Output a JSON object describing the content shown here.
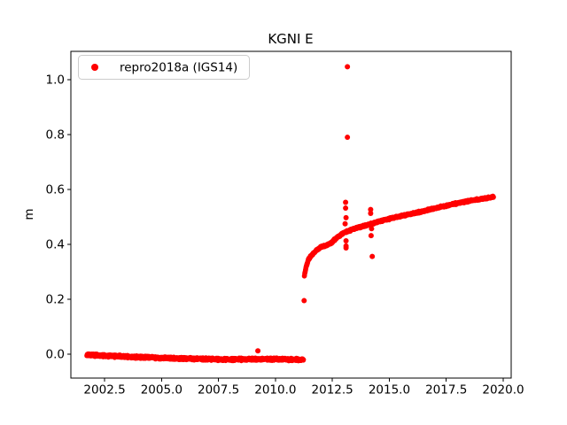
{
  "figure": {
    "title": "KGNI E"
  },
  "chart_data": {
    "type": "scatter",
    "title": "KGNI E",
    "xlabel": "",
    "ylabel": "m",
    "xlim": [
      2001.02,
      2020.35
    ],
    "ylim": [
      -0.087,
      1.103
    ],
    "xtick_values": [
      2002.5,
      2005.0,
      2007.5,
      2010.0,
      2012.5,
      2015.0,
      2017.5,
      2020.0
    ],
    "xtick_labels": [
      "2002.5",
      "2005.0",
      "2007.5",
      "2010.0",
      "2012.5",
      "2015.0",
      "2017.5",
      "2020.0"
    ],
    "ytick_values": [
      0.0,
      0.2,
      0.4,
      0.6,
      0.8,
      1.0
    ],
    "ytick_labels": [
      "0.0",
      "0.2",
      "0.4",
      "0.6",
      "0.8",
      "1.0"
    ],
    "grid": false,
    "background": "#ffffff",
    "spine_color": "#000000",
    "legend": {
      "position": "upper-left",
      "entries": [
        {
          "label": "repro2018a (IGS14)",
          "color": "#ff0000",
          "marker": "dot"
        }
      ]
    },
    "series": [
      {
        "name": "repro2018a (IGS14)",
        "color": "#ff0000",
        "marker_radius_px": 2.8,
        "segments": [
          {
            "name": "pre-earthquake-band",
            "x_start": 2001.72,
            "x_end": 2011.24,
            "step_years": 0.008,
            "jitter_m": 0.0055,
            "trend": [
              [
                2001.72,
                -0.002
              ],
              [
                2002.5,
                -0.005
              ],
              [
                2003.5,
                -0.009
              ],
              [
                2004.5,
                -0.012
              ],
              [
                2005.5,
                -0.015
              ],
              [
                2006.5,
                -0.017
              ],
              [
                2007.8,
                -0.019
              ],
              [
                2009.0,
                -0.018
              ],
              [
                2010.0,
                -0.018
              ],
              [
                2011.24,
                -0.02
              ]
            ]
          },
          {
            "name": "post-earthquake-curve",
            "x_start": 2011.27,
            "x_end": 2019.58,
            "step_years": 0.008,
            "jitter_m": 0.004,
            "trend": [
              [
                2011.27,
                0.285
              ],
              [
                2011.35,
                0.318
              ],
              [
                2011.45,
                0.345
              ],
              [
                2011.6,
                0.362
              ],
              [
                2011.8,
                0.378
              ],
              [
                2012.0,
                0.39
              ],
              [
                2012.4,
                0.402
              ],
              [
                2012.7,
                0.425
              ],
              [
                2013.0,
                0.443
              ],
              [
                2013.5,
                0.458
              ],
              [
                2014.0,
                0.47
              ],
              [
                2014.5,
                0.482
              ],
              [
                2015.0,
                0.493
              ],
              [
                2015.5,
                0.503
              ],
              [
                2016.0,
                0.512
              ],
              [
                2016.5,
                0.521
              ],
              [
                2017.0,
                0.532
              ],
              [
                2017.5,
                0.541
              ],
              [
                2018.0,
                0.55
              ],
              [
                2018.5,
                0.558
              ],
              [
                2019.0,
                0.565
              ],
              [
                2019.58,
                0.573
              ]
            ]
          }
        ],
        "outliers": [
          [
            2009.23,
            0.012
          ],
          [
            2011.26,
            0.195
          ],
          [
            2013.16,
            1.047
          ],
          [
            2013.16,
            0.79
          ],
          [
            2013.08,
            0.553
          ],
          [
            2013.08,
            0.532
          ],
          [
            2013.1,
            0.497
          ],
          [
            2013.06,
            0.475
          ],
          [
            2013.1,
            0.413
          ],
          [
            2013.1,
            0.394
          ],
          [
            2013.1,
            0.387
          ],
          [
            2014.18,
            0.527
          ],
          [
            2014.18,
            0.513
          ],
          [
            2014.22,
            0.457
          ],
          [
            2014.2,
            0.432
          ],
          [
            2014.25,
            0.356
          ]
        ]
      }
    ]
  }
}
